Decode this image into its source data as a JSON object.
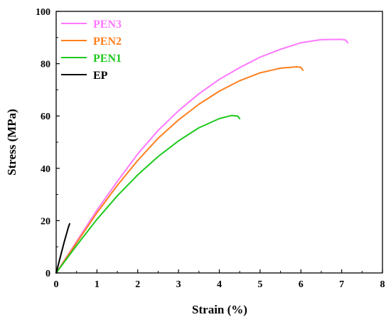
{
  "chart_data": {
    "type": "line",
    "xlabel": "Strain  (%)",
    "ylabel": "Stress  (MPa)",
    "xlim": [
      0,
      8
    ],
    "ylim": [
      0,
      100
    ],
    "xticks": [
      0,
      1,
      2,
      3,
      4,
      5,
      6,
      7,
      8
    ],
    "yticks": [
      0,
      20,
      40,
      60,
      80,
      100
    ],
    "grid": false,
    "legend_position": "top-left",
    "series": [
      {
        "name": "PEN3",
        "color": "#ff77ff",
        "x": [
          0,
          0.5,
          1.0,
          1.5,
          2.0,
          2.5,
          3.0,
          3.5,
          4.0,
          4.5,
          5.0,
          5.5,
          6.0,
          6.5,
          7.0,
          7.1,
          7.15
        ],
        "y": [
          0,
          12,
          24,
          35,
          45.5,
          54.5,
          62,
          68.5,
          74,
          78.5,
          82.5,
          85.5,
          88,
          89.2,
          89.3,
          89,
          88
        ]
      },
      {
        "name": "PEN2",
        "color": "#ff7f1e",
        "x": [
          0,
          0.5,
          1.0,
          1.5,
          2.0,
          2.5,
          3.0,
          3.5,
          4.0,
          4.5,
          5.0,
          5.5,
          5.9,
          6.0,
          6.05
        ],
        "y": [
          0,
          11.5,
          23,
          33.5,
          43,
          51.5,
          58.5,
          64.5,
          69.5,
          73.5,
          76.5,
          78.3,
          78.8,
          78.6,
          77.5
        ]
      },
      {
        "name": "PEN1",
        "color": "#1ec81e",
        "x": [
          0,
          0.5,
          1.0,
          1.5,
          2.0,
          2.5,
          3.0,
          3.5,
          4.0,
          4.3,
          4.45,
          4.5
        ],
        "y": [
          0,
          10.5,
          20.5,
          29.5,
          37.5,
          44.5,
          50.5,
          55.5,
          59,
          60.2,
          60,
          59
        ]
      },
      {
        "name": "EP",
        "color": "#000000",
        "x": [
          0,
          0.1,
          0.2,
          0.3,
          0.33
        ],
        "y": [
          0,
          6,
          12,
          17.5,
          18.8
        ]
      }
    ]
  }
}
